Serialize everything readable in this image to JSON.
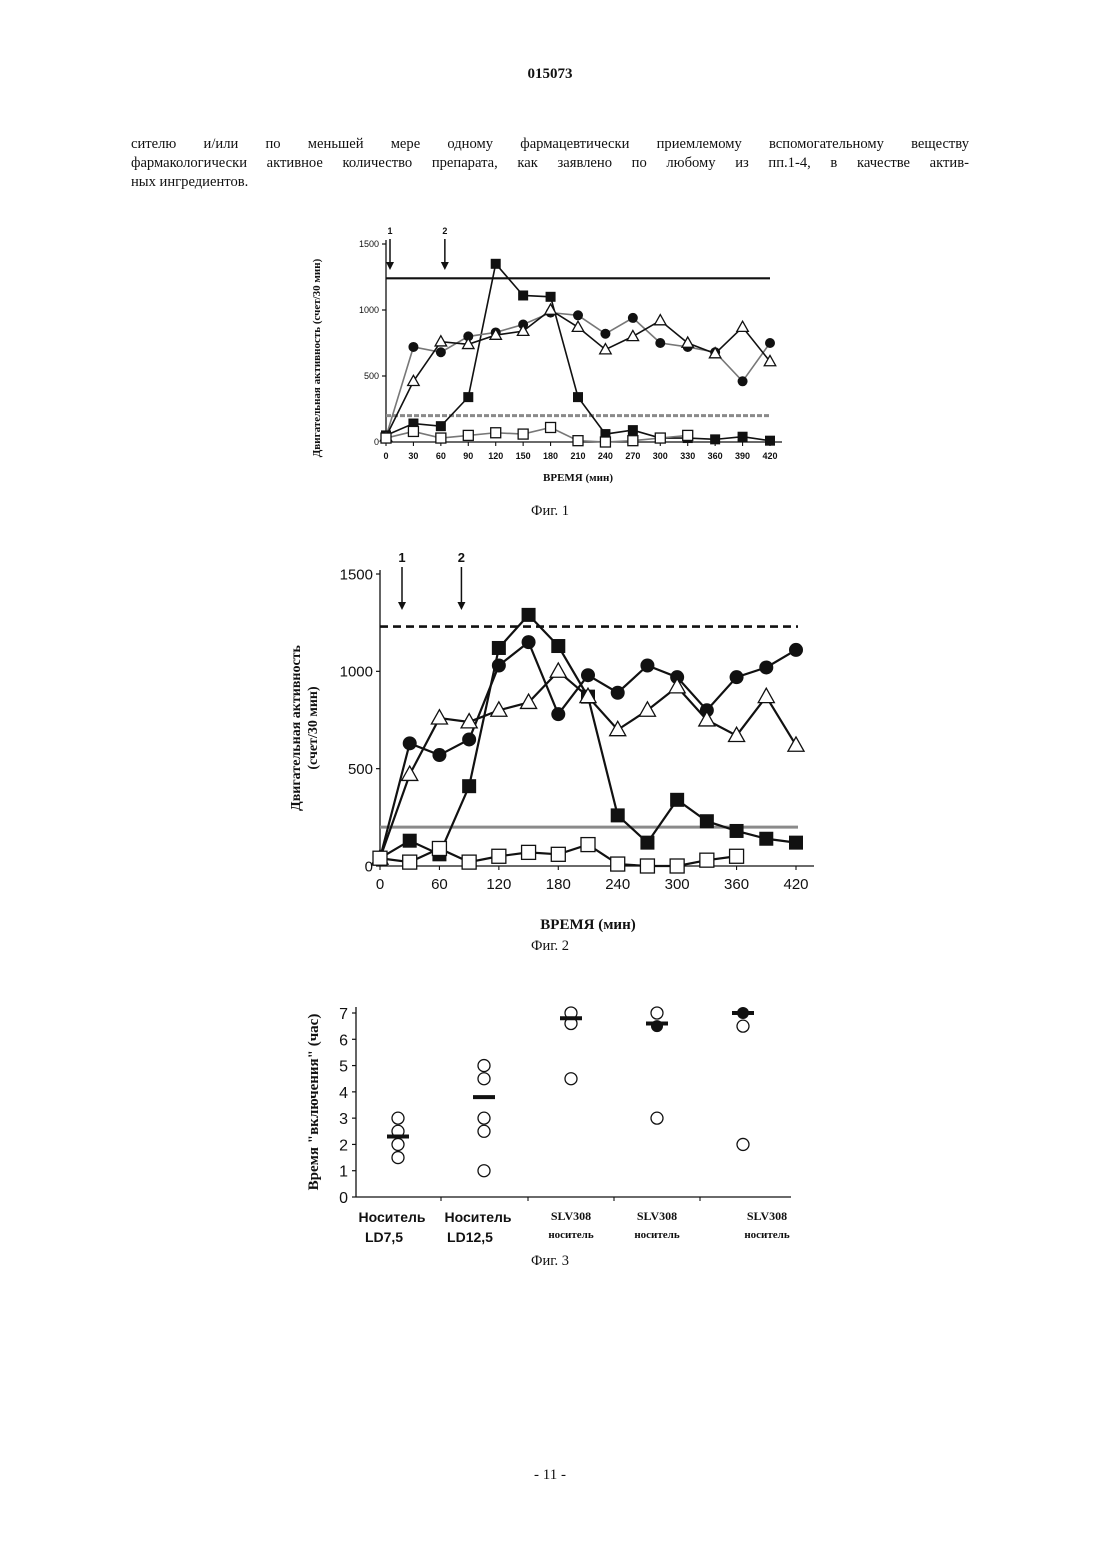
{
  "header": {
    "patent_number": "015073"
  },
  "body_text": [
    "сителю и/или по меньшей мере одному фармацевтически приемлемому вспомогательному веществу",
    "фармакологически активное количество препарата, как заявлено по любому из пп.1-4, в качестве актив-",
    "ных ингредиентов."
  ],
  "figures": [
    {
      "caption": "Фиг. 1"
    },
    {
      "caption": "Фиг. 2"
    },
    {
      "caption": "Фиг. 3"
    }
  ],
  "footer": {
    "page_number": "- 11 -"
  },
  "chart_data": [
    {
      "type": "line",
      "title": "",
      "xlabel": "ВРЕМЯ (мин)",
      "ylabel": "Двигательная активность (счет/30 мин)",
      "x": [
        0,
        30,
        60,
        90,
        120,
        150,
        180,
        210,
        240,
        270,
        300,
        330,
        360,
        390,
        420
      ],
      "x_ticks": [
        "0",
        "30",
        "60",
        "90",
        "120",
        "150",
        "180",
        "210",
        "240",
        "270",
        "300",
        "330",
        "360",
        "390",
        "420"
      ],
      "y_ticks": [
        "0",
        "500",
        "1000",
        "1500"
      ],
      "ylim": [
        0,
        1500
      ],
      "xlim": [
        0,
        420
      ],
      "grid": false,
      "arrows": [
        {
          "label": "1",
          "x": 0
        },
        {
          "label": "2",
          "x": 60
        }
      ],
      "reference_lines": [
        {
          "y": 1240,
          "style": "solid"
        },
        {
          "y": 200,
          "style": "dashed-gray"
        }
      ],
      "series": [
        {
          "marker": "filled-square",
          "color": "#111111",
          "points": [
            [
              0,
              50
            ],
            [
              30,
              140
            ],
            [
              60,
              120
            ],
            [
              90,
              340
            ],
            [
              120,
              1350
            ],
            [
              150,
              1110
            ],
            [
              180,
              1100
            ],
            [
              210,
              340
            ],
            [
              240,
              60
            ],
            [
              270,
              90
            ],
            [
              300,
              30
            ],
            [
              330,
              30
            ],
            [
              360,
              20
            ],
            [
              390,
              40
            ],
            [
              420,
              10
            ]
          ]
        },
        {
          "marker": "filled-circle",
          "color": "#111111",
          "line_color": "#777777",
          "points": [
            [
              0,
              40
            ],
            [
              30,
              720
            ],
            [
              60,
              680
            ],
            [
              90,
              800
            ],
            [
              120,
              830
            ],
            [
              150,
              890
            ],
            [
              180,
              980
            ],
            [
              210,
              960
            ],
            [
              240,
              820
            ],
            [
              270,
              940
            ],
            [
              300,
              750
            ],
            [
              330,
              720
            ],
            [
              360,
              680
            ],
            [
              390,
              460
            ],
            [
              420,
              750
            ]
          ]
        },
        {
          "marker": "open-triangle",
          "color": "#111111",
          "points": [
            [
              0,
              40
            ],
            [
              30,
              460
            ],
            [
              60,
              760
            ],
            [
              90,
              740
            ],
            [
              120,
              810
            ],
            [
              150,
              840
            ],
            [
              180,
              1000
            ],
            [
              210,
              870
            ],
            [
              240,
              700
            ],
            [
              270,
              800
            ],
            [
              300,
              920
            ],
            [
              330,
              750
            ],
            [
              360,
              670
            ],
            [
              390,
              870
            ],
            [
              420,
              610
            ]
          ]
        },
        {
          "marker": "open-square",
          "color": "#111111",
          "line_color": "#777777",
          "points": [
            [
              0,
              30
            ],
            [
              30,
              80
            ],
            [
              60,
              30
            ],
            [
              90,
              50
            ],
            [
              120,
              70
            ],
            [
              150,
              60
            ],
            [
              180,
              110
            ],
            [
              210,
              10
            ],
            [
              240,
              0
            ],
            [
              270,
              10
            ],
            [
              300,
              30
            ],
            [
              330,
              50
            ]
          ]
        }
      ]
    },
    {
      "type": "line",
      "title": "",
      "xlabel": "ВРЕМЯ (мин)",
      "ylabel_line1": "Двигательная активность",
      "ylabel_line2": "(счет/30 мин)",
      "x_ticks": [
        "0",
        "60",
        "120",
        "180",
        "240",
        "300",
        "360",
        "420"
      ],
      "x_tick_values": [
        0,
        60,
        120,
        180,
        240,
        300,
        360,
        420
      ],
      "y_ticks": [
        "0",
        "500",
        "1000",
        "1500"
      ],
      "ylim": [
        0,
        1500
      ],
      "xlim": [
        0,
        420
      ],
      "grid": false,
      "arrows": [
        {
          "label": "1",
          "x": 0
        },
        {
          "label": "2",
          "x": 60
        }
      ],
      "reference_lines": [
        {
          "y": 1230,
          "style": "dashed"
        },
        {
          "y": 200,
          "style": "solid-gray"
        }
      ],
      "series": [
        {
          "marker": "filled-square",
          "color": "#111111",
          "points": [
            [
              0,
              40
            ],
            [
              30,
              130
            ],
            [
              60,
              60
            ],
            [
              90,
              410
            ],
            [
              120,
              1120
            ],
            [
              150,
              1290
            ],
            [
              180,
              1130
            ],
            [
              210,
              870
            ],
            [
              240,
              260
            ],
            [
              270,
              120
            ],
            [
              300,
              340
            ],
            [
              330,
              230
            ],
            [
              360,
              180
            ],
            [
              390,
              140
            ],
            [
              420,
              120
            ]
          ]
        },
        {
          "marker": "filled-circle",
          "color": "#111111",
          "points": [
            [
              0,
              40
            ],
            [
              30,
              630
            ],
            [
              60,
              570
            ],
            [
              90,
              650
            ],
            [
              120,
              1030
            ],
            [
              150,
              1150
            ],
            [
              180,
              780
            ],
            [
              210,
              980
            ],
            [
              240,
              890
            ],
            [
              270,
              1030
            ],
            [
              300,
              970
            ],
            [
              330,
              800
            ],
            [
              360,
              970
            ],
            [
              390,
              1020
            ],
            [
              420,
              1110
            ]
          ]
        },
        {
          "marker": "open-triangle",
          "color": "#111111",
          "points": [
            [
              0,
              40
            ],
            [
              30,
              470
            ],
            [
              60,
              760
            ],
            [
              90,
              740
            ],
            [
              120,
              800
            ],
            [
              150,
              840
            ],
            [
              180,
              1000
            ],
            [
              210,
              870
            ],
            [
              240,
              700
            ],
            [
              270,
              800
            ],
            [
              300,
              920
            ],
            [
              330,
              750
            ],
            [
              360,
              670
            ],
            [
              390,
              870
            ],
            [
              420,
              620
            ]
          ]
        },
        {
          "marker": "open-square",
          "color": "#111111",
          "points": [
            [
              0,
              40
            ],
            [
              30,
              20
            ],
            [
              60,
              90
            ],
            [
              90,
              20
            ],
            [
              120,
              50
            ],
            [
              150,
              70
            ],
            [
              180,
              60
            ],
            [
              210,
              110
            ],
            [
              240,
              10
            ],
            [
              270,
              0
            ],
            [
              300,
              0
            ],
            [
              330,
              30
            ],
            [
              360,
              50
            ]
          ]
        }
      ]
    },
    {
      "type": "scatter",
      "title": "",
      "ylabel": "Время \"включения\" (час)",
      "ylim": [
        0,
        7
      ],
      "y_ticks": [
        "0",
        "1",
        "2",
        "3",
        "4",
        "5",
        "6",
        "7"
      ],
      "grid": false,
      "groups": [
        {
          "label_line1": "Носитель",
          "label_line2": "LD7,5",
          "style": "bold-sans",
          "points": [
            3,
            2.5,
            2,
            1.5
          ],
          "median": 2.3
        },
        {
          "label_line1": "Носитель",
          "label_line2": "LD12,5",
          "style": "bold-sans",
          "points": [
            5,
            4.5,
            3,
            2.5,
            1
          ],
          "median": 3.8
        },
        {
          "label_line1": "SLV308",
          "label_line2": "носитель",
          "style": "serif",
          "points": [
            7,
            6.6,
            4.5
          ],
          "median": 6.8
        },
        {
          "label_line1": "SLV308",
          "label_line2": "носитель",
          "style": "serif",
          "points": [
            7,
            6.5,
            3
          ],
          "median": 6.6,
          "filled_points": [
            6.5
          ]
        },
        {
          "label_line1": "SLV308",
          "label_line2": "носитель",
          "style": "serif",
          "points": [
            7,
            6.5,
            2
          ],
          "median": 7.0,
          "filled_points": [
            7
          ]
        }
      ]
    }
  ]
}
